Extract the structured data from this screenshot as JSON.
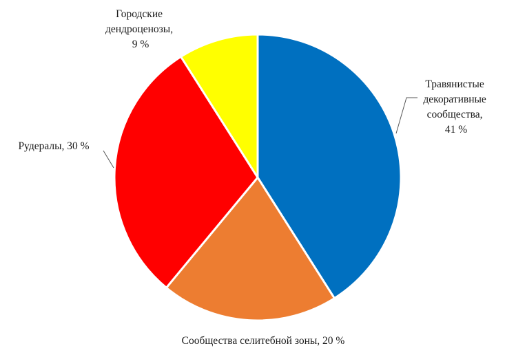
{
  "chart_data": {
    "type": "pie",
    "start_angle_deg": 0,
    "direction": "clockwise",
    "slices": [
      {
        "label_lines": [
          "Травянистые",
          "декоративные",
          "сообщества,",
          "41 %"
        ],
        "value": 41,
        "color": "#0070C0"
      },
      {
        "label_lines": [
          "Сообщества селитебной зоны, 20 %"
        ],
        "value": 20,
        "color": "#ED7D31"
      },
      {
        "label_lines": [
          "Рудералы, 30 %"
        ],
        "value": 30,
        "color": "#FF0000"
      },
      {
        "label_lines": [
          "Городские",
          "дендроценозы,",
          "9 %"
        ],
        "value": 9,
        "color": "#FFFF00"
      }
    ]
  }
}
